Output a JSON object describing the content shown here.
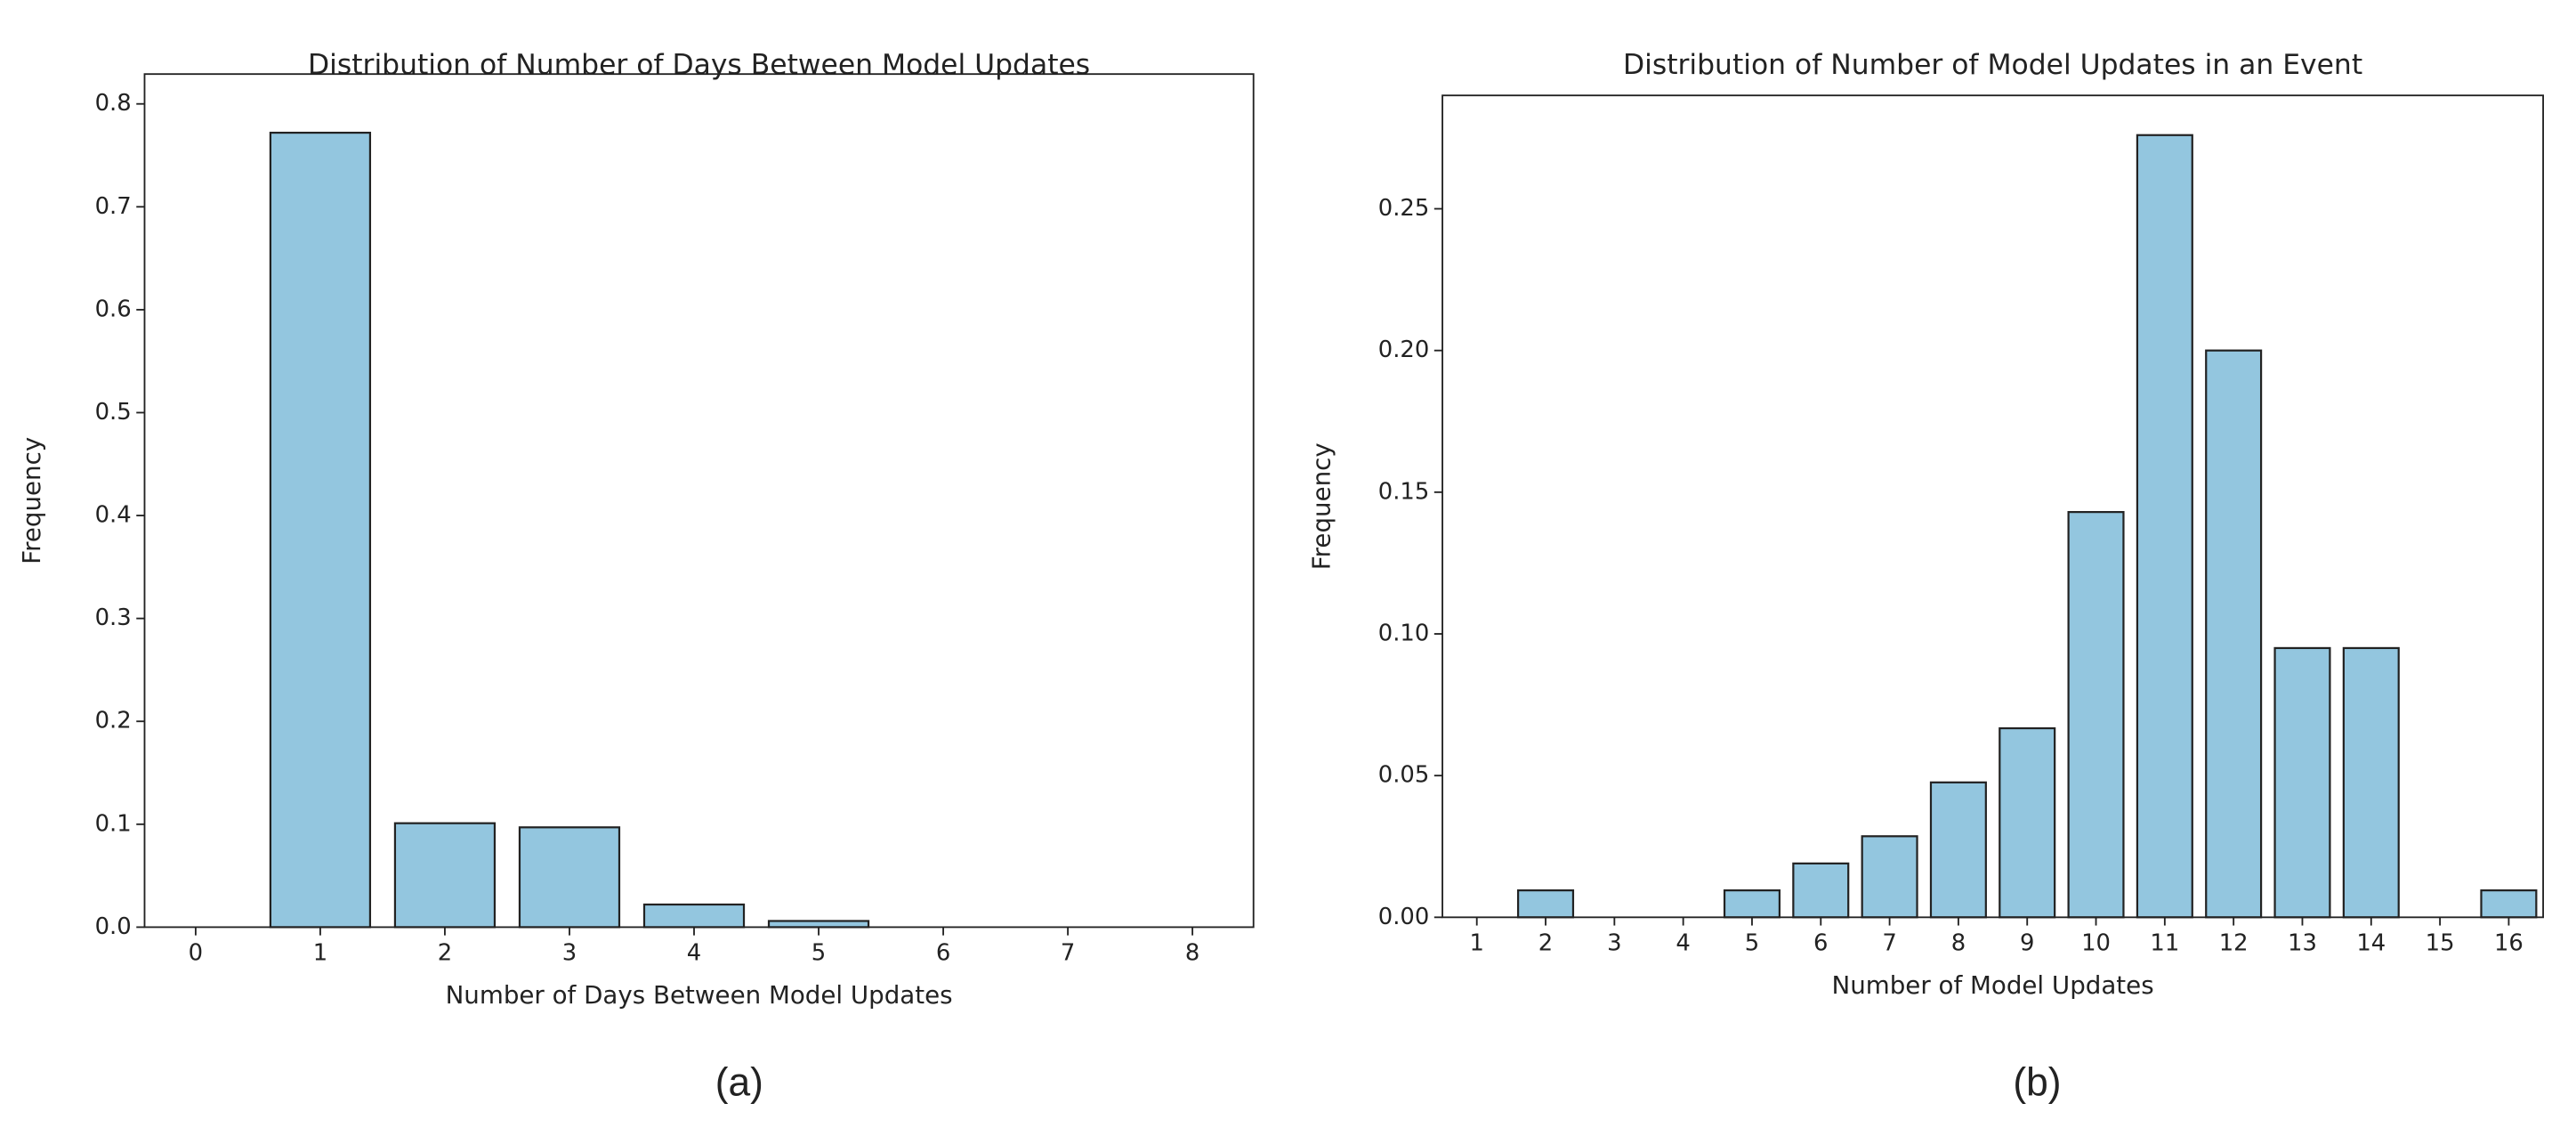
{
  "chart_data": [
    {
      "type": "bar",
      "title": "Distribution of Number of Days Between Model Updates",
      "x_label": "Number of Days Between Model Updates",
      "y_label": "Frequency",
      "caption": "(a)",
      "x": [
        0,
        1,
        2,
        3,
        4,
        5,
        6,
        7,
        8
      ],
      "values": [
        0,
        0.772,
        0.101,
        0.097,
        0.022,
        0.006,
        0,
        0,
        0
      ],
      "color": "#93c6df",
      "edgecolor": "#222222",
      "xlim": [
        -0.41,
        8.49
      ],
      "xticks": [
        0,
        1,
        2,
        3,
        4,
        5,
        6,
        7,
        8
      ],
      "ylim": [
        0,
        0.829
      ],
      "yticks": [
        {
          "value": 0,
          "label": "0.0"
        },
        0.1,
        0.2,
        0.3,
        0.4,
        0.5,
        0.6,
        0.7,
        0.8
      ],
      "grid": false
    },
    {
      "type": "bar",
      "title": "Distribution of Number of Model Updates in an Event",
      "x_label": "Number of Model Updates",
      "y_label": "Frequency",
      "caption": "(b)",
      "x": [
        1,
        2,
        3,
        4,
        5,
        6,
        7,
        8,
        9,
        10,
        11,
        12,
        13,
        14,
        15,
        16
      ],
      "values": [
        0,
        0.0095,
        0,
        0,
        0.0095,
        0.019,
        0.0286,
        0.0476,
        0.0667,
        0.143,
        0.276,
        0.2,
        0.095,
        0.095,
        0,
        0.0095
      ],
      "color": "#93c6df",
      "edgecolor": "#222222",
      "xlim": [
        0.5,
        16.5
      ],
      "xticks": [
        1,
        2,
        3,
        4,
        5,
        6,
        7,
        8,
        9,
        10,
        11,
        12,
        13,
        14,
        15,
        16
      ],
      "ylim": [
        0,
        0.29
      ],
      "yticks": [
        {
          "value": 0,
          "label": "0.00"
        },
        0.05,
        {
          "value": 0.1,
          "label": "0.10"
        },
        0.15,
        {
          "value": 0.2,
          "label": "0.20"
        },
        0.25
      ],
      "grid": false
    }
  ]
}
